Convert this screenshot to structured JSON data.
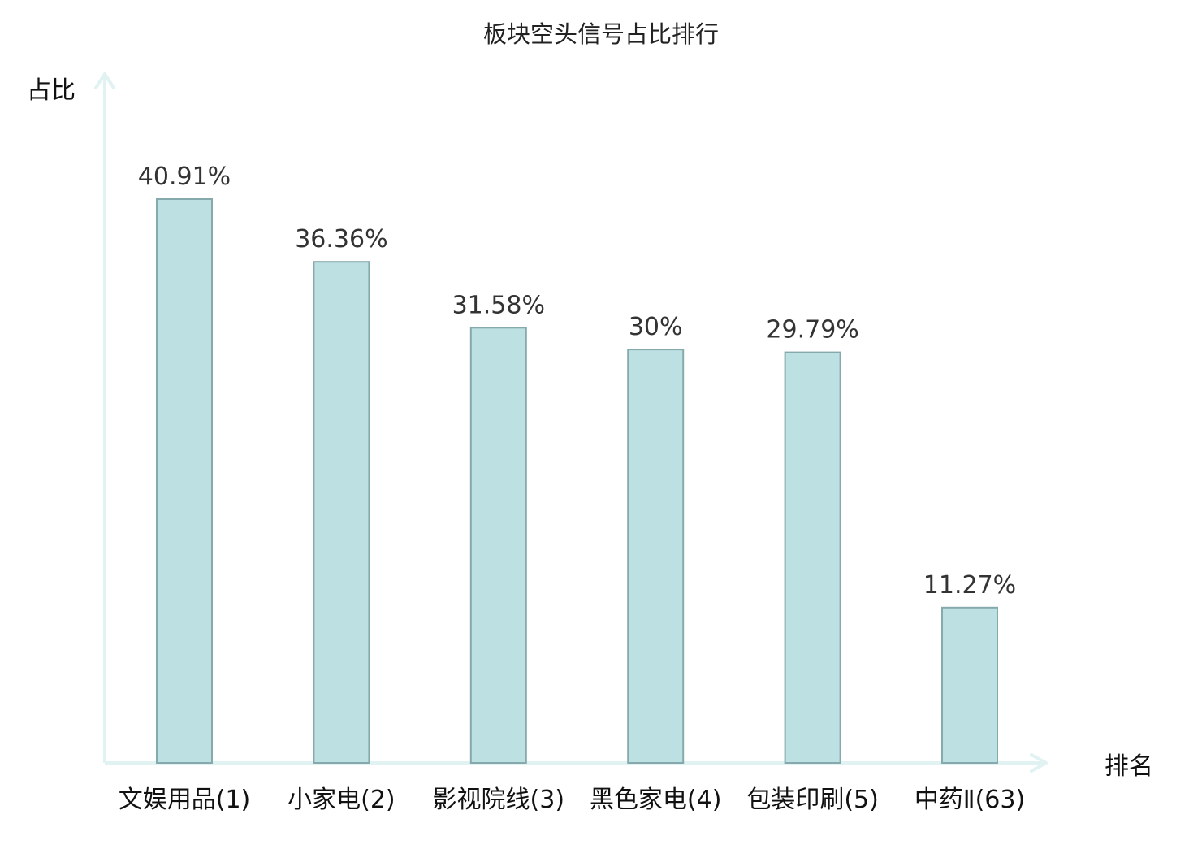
{
  "colors": {
    "bar_fill": "#bde0e2",
    "bar_stroke": "#86a9ab",
    "axis": "#e0f2f1",
    "text": "#111111",
    "value_text": "#333333",
    "highlight": "#e02020"
  },
  "chart_data": {
    "type": "bar",
    "title": "板块空头信号占比排行",
    "xlabel": "排名",
    "ylabel": "占比",
    "categories": [
      "文娱用品(1)",
      "小家电(2)",
      "影视院线(3)",
      "黑色家电(4)",
      "包装印刷(5)",
      "中药Ⅱ(63)"
    ],
    "values": [
      40.91,
      36.36,
      31.58,
      30,
      29.79,
      11.27
    ],
    "value_labels": [
      "40.91%",
      "36.36%",
      "31.58%",
      "30%",
      "29.79%",
      "11.27%"
    ],
    "highlight_index": 5,
    "ylim": [
      0,
      45
    ],
    "grid": false,
    "legend": "none"
  }
}
